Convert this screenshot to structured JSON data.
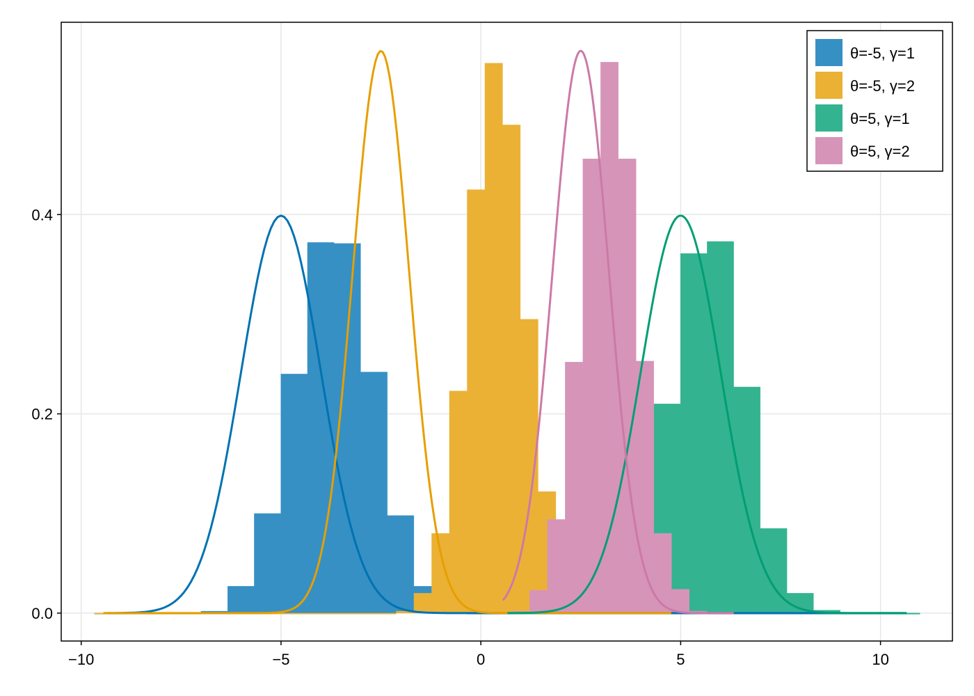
{
  "chart_data": {
    "type": "bar",
    "title": "",
    "xlabel": "",
    "ylabel": "",
    "xlim": [
      -10.5,
      11.8
    ],
    "ylim": [
      -0.028,
      0.593
    ],
    "xticks": [
      -10,
      -5,
      0,
      5,
      10
    ],
    "xtick_labels": [
      "−10",
      "−5",
      "0",
      "5",
      "10"
    ],
    "yticks": [
      0.0,
      0.2,
      0.4
    ],
    "ytick_labels": [
      "0.0",
      "0.2",
      "0.4"
    ],
    "grid": true,
    "legend_position": "top-right",
    "series": [
      {
        "name": "θ=-5, γ=1",
        "color": "#0072b2",
        "bar_color": "#3690c4",
        "bin_width": 0.666,
        "bin_edges_start": -9.667,
        "bar_values": [
          0.0,
          0.0,
          0.0,
          0.0,
          0.002,
          0.027,
          0.1,
          0.24,
          0.372,
          0.371,
          0.242,
          0.098,
          0.027,
          0.004,
          0.0,
          0.0,
          0.0,
          0.0,
          0.0,
          0.0,
          0.0,
          0.0,
          0.0,
          0.0,
          0.0,
          0.0,
          0.0,
          0.0,
          0.0,
          0.0,
          0.0
        ],
        "pdf_mu": -5,
        "pdf_sigma": 1
      },
      {
        "name": "θ=-5, γ=2",
        "color": "#e69f00",
        "bar_color": "#ebb135",
        "bin_width": 0.444,
        "bin_edges_start": -9.667,
        "bar_values": [
          0.0,
          0.0,
          0.0,
          0.0,
          0.0,
          0.0,
          0.0,
          0.0,
          0.0,
          0.0,
          0.0,
          0.0,
          0.0,
          0.0,
          0.0,
          0.0,
          0.0,
          0.002,
          0.02,
          0.08,
          0.223,
          0.425,
          0.552,
          0.49,
          0.295,
          0.122,
          0.034,
          0.008,
          0.0,
          0.0,
          0.0,
          0.0,
          0.0
        ],
        "pdf_mu": -2.5,
        "pdf_sigma": 0.707
      },
      {
        "name": "θ=5, γ=1",
        "color": "#009e73",
        "bar_color": "#34b390",
        "bin_width": 0.666,
        "bin_edges_start": 0.333,
        "bar_values": [
          0.0,
          0.0,
          0.001,
          0.002,
          0.024,
          0.095,
          0.21,
          0.361,
          0.373,
          0.227,
          0.085,
          0.02,
          0.003,
          0.0,
          0.0,
          0.0
        ],
        "pdf_mu": 5,
        "pdf_sigma": 1
      },
      {
        "name": "θ=5, γ=2",
        "color": "#cc79a7",
        "bar_color": "#d694b8",
        "bin_width": 0.444,
        "bin_edges_start": 0.333,
        "bar_values": [
          0.0,
          0.002,
          0.023,
          0.094,
          0.252,
          0.456,
          0.553,
          0.456,
          0.253,
          0.08,
          0.024,
          0.002,
          0.0,
          0.0
        ],
        "pdf_mu": 2.5,
        "pdf_sigma": 0.707
      }
    ]
  }
}
